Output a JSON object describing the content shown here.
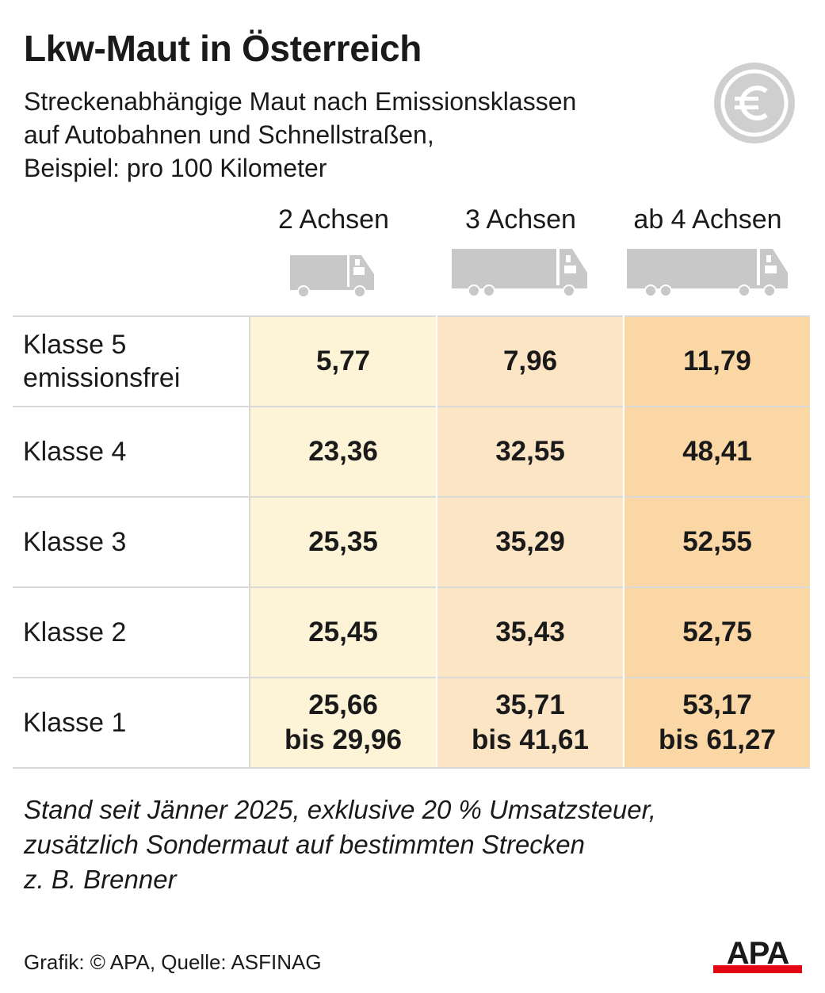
{
  "header": {
    "title": "Lkw-Maut in Österreich",
    "subtitle_lines": [
      "Streckenabhängige Maut nach Emissionsklassen",
      "auf Autobahnen und Schnellstraßen,",
      "Beispiel: pro 100 Kilometer"
    ],
    "icon": "euro-coin-icon"
  },
  "colors": {
    "col_2_achsen": "#fdf3d6",
    "col_3_achsen": "#fce5c5",
    "col_4_achsen": "#fad7a4",
    "truck_icon": "#c8c8c8",
    "apa_red": "#e30613"
  },
  "chart_data": {
    "type": "table",
    "columns": [
      {
        "label": "2 Achsen",
        "icon": "truck-2-axles-icon"
      },
      {
        "label": "3 Achsen",
        "icon": "truck-3-axles-icon"
      },
      {
        "label": "ab 4 Achsen",
        "icon": "truck-4-axles-icon"
      }
    ],
    "rows": [
      {
        "label_lines": [
          "Klasse 5",
          "emissionsfrei"
        ],
        "cells": [
          [
            "5,77"
          ],
          [
            "7,96"
          ],
          [
            "11,79"
          ]
        ]
      },
      {
        "label_lines": [
          "Klasse 4"
        ],
        "cells": [
          [
            "23,36"
          ],
          [
            "32,55"
          ],
          [
            "48,41"
          ]
        ]
      },
      {
        "label_lines": [
          "Klasse 3"
        ],
        "cells": [
          [
            "25,35"
          ],
          [
            "35,29"
          ],
          [
            "52,55"
          ]
        ]
      },
      {
        "label_lines": [
          "Klasse 2"
        ],
        "cells": [
          [
            "25,45"
          ],
          [
            "35,43"
          ],
          [
            "52,75"
          ]
        ]
      },
      {
        "label_lines": [
          "Klasse 1"
        ],
        "cells": [
          [
            "25,66",
            "bis 29,96"
          ],
          [
            "35,71",
            "bis 41,61"
          ],
          [
            "53,17",
            "bis 61,27"
          ]
        ]
      }
    ]
  },
  "footnote_lines": [
    "Stand seit Jänner 2025, exklusive 20 % Umsatzsteuer,",
    "zusätzlich Sondermaut auf bestimmten Strecken",
    "z. B. Brenner"
  ],
  "footer": {
    "source": "Grafik: © APA, Quelle: ASFINAG",
    "logo_text": "APA"
  }
}
